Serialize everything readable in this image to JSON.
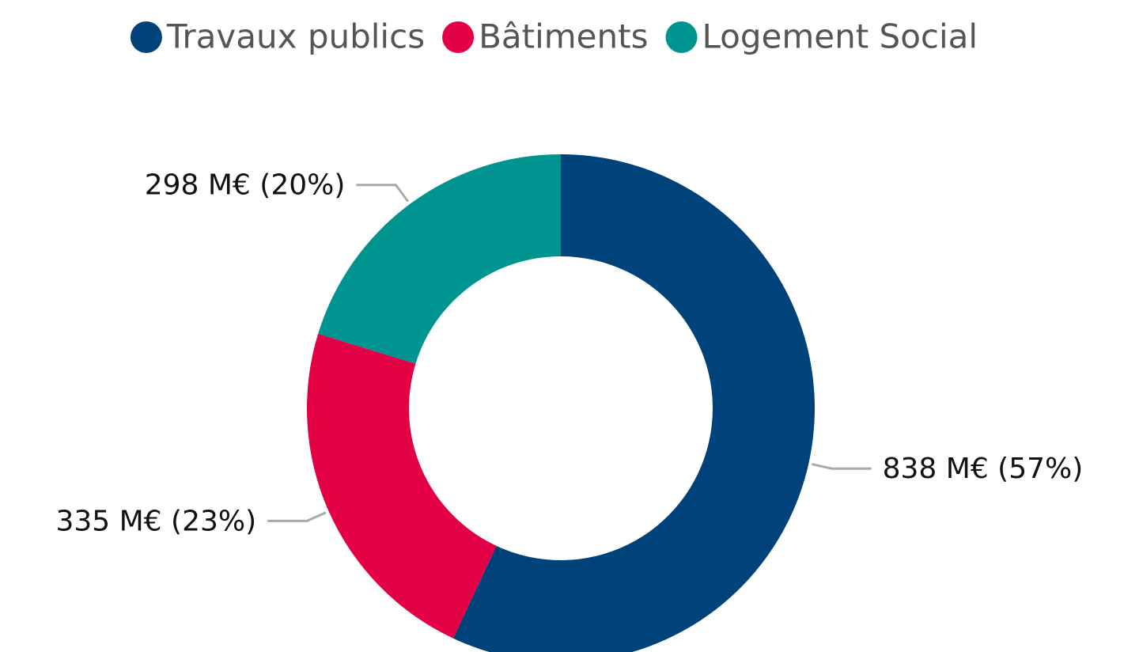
{
  "chart_data": {
    "type": "donut",
    "categories": [
      "Travaux publics",
      "Bâtiments",
      "Logement Social"
    ],
    "values": [
      838,
      335,
      298
    ],
    "value_labels": [
      "838 M€ (57%)",
      "335 M€ (23%)",
      "298 M€ (20%)"
    ],
    "colors": [
      "#00427a",
      "#e30045",
      "#009490"
    ],
    "legend": "top"
  }
}
